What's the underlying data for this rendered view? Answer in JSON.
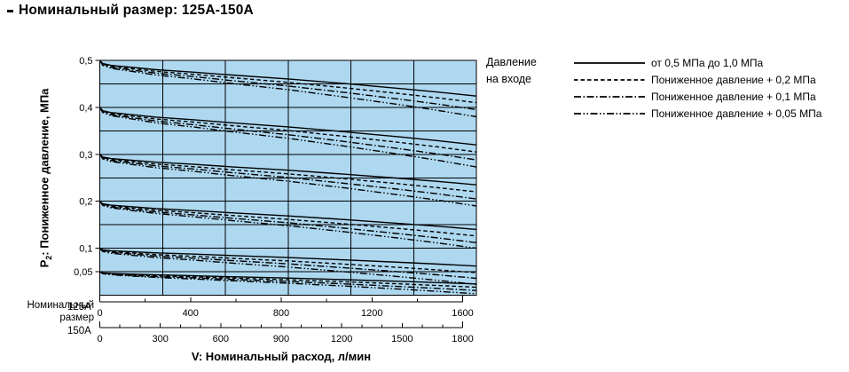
{
  "page": {
    "title": "Номинальный размер: 125A-150A"
  },
  "chart_data": {
    "type": "line",
    "title": "Номинальный размер: 125A-150A",
    "colors": {
      "plot_bg": "#aed8f0",
      "grid": "#000000",
      "line": "#000000",
      "text": "#000000"
    },
    "y_axis": {
      "title_prefix": "P",
      "title_sub": "2",
      "title_rest": ": Пониженное давление, МПа",
      "min": 0,
      "max": 0.5,
      "grid_step": 0.05,
      "ticks": [
        {
          "value": 0.5,
          "label": "0,5"
        },
        {
          "value": 0.4,
          "label": "0,4"
        },
        {
          "value": 0.3,
          "label": "0,3"
        },
        {
          "value": 0.2,
          "label": "0,2"
        },
        {
          "value": 0.1,
          "label": "0,1"
        },
        {
          "value": 0.05,
          "label": "0,05"
        }
      ]
    },
    "x_title": "V: Номинальный расход, л/мин",
    "size_caption_line1": "Номинальный",
    "size_caption_line2": "размер",
    "columns": 6,
    "x_axes": [
      {
        "name": "125A",
        "min": 0,
        "max": 1600,
        "major_step": 400,
        "minor_step": 200,
        "major_labels": [
          "0",
          "400",
          "800",
          "1200",
          "1600"
        ]
      },
      {
        "name": "150A",
        "min": 0,
        "max": 1800,
        "major_step": 300,
        "minor_step": 100,
        "major_labels": [
          "0",
          "300",
          "600",
          "900",
          "1200",
          "1500",
          "1800"
        ]
      }
    ],
    "legend": {
      "title_line1": "Давление",
      "title_line2": "на входе",
      "items": [
        {
          "style": "solid",
          "label": "от 0,5 МПа до 1,0 МПа"
        },
        {
          "style": "dashed",
          "label": "Пониженное давление + 0,2 МПа"
        },
        {
          "style": "dash-dot",
          "label": "Пониженное давление + 0,1 МПа"
        },
        {
          "style": "dash-dot-dot",
          "label": "Пониженное давление + 0,05 МПа"
        }
      ]
    },
    "series_groups": [
      {
        "start_pressure": 0.5,
        "end_pressure": {
          "solid": 0.424,
          "dashed": 0.41,
          "dash-dot": 0.395,
          "dash-dot-dot": 0.38
        }
      },
      {
        "start_pressure": 0.4,
        "end_pressure": {
          "solid": 0.32,
          "dashed": 0.305,
          "dash-dot": 0.288,
          "dash-dot-dot": 0.273
        }
      },
      {
        "start_pressure": 0.3,
        "end_pressure": {
          "solid": 0.235,
          "dashed": 0.22,
          "dash-dot": 0.205,
          "dash-dot-dot": 0.19
        }
      },
      {
        "start_pressure": 0.2,
        "end_pressure": {
          "solid": 0.14,
          "dashed": 0.126,
          "dash-dot": 0.112,
          "dash-dot-dot": 0.1
        }
      },
      {
        "start_pressure": 0.1,
        "end_pressure": {
          "solid": 0.062,
          "dashed": 0.048,
          "dash-dot": 0.036,
          "dash-dot-dot": 0.023
        }
      },
      {
        "start_pressure": 0.05,
        "end_pressure": {
          "solid": 0.024,
          "dashed": 0.017,
          "dash-dot": 0.01,
          "dash-dot-dot": 0.003
        }
      }
    ],
    "decline_profile": {
      "t": [
        0,
        0.008,
        0.03,
        0.08,
        0.15,
        0.25,
        0.35,
        0.5,
        0.65,
        0.8,
        0.9,
        1
      ],
      "f": [
        0,
        0.09,
        0.14,
        0.19,
        0.26,
        0.33,
        0.41,
        0.52,
        0.65,
        0.79,
        0.89,
        1
      ]
    }
  }
}
